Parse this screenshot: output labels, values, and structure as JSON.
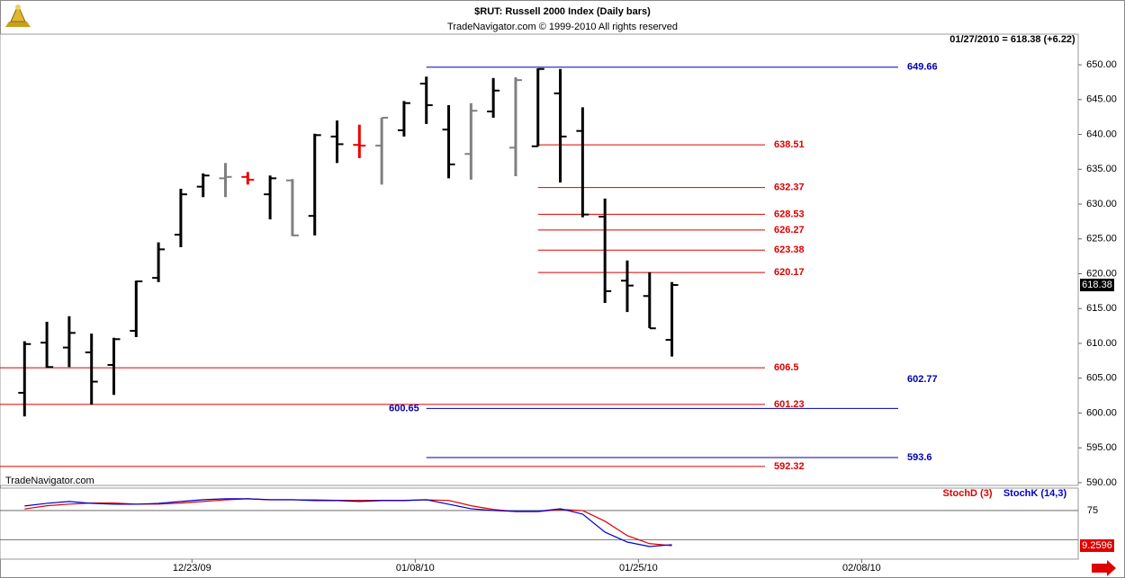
{
  "header": {
    "title": "$RUT:  Russell 2000 Index  (Daily bars)",
    "subtitle": "TradeNavigator.com © 1999-2010 All rights reserved"
  },
  "chart_data": [
    {
      "type": "ohlc",
      "status": "01/27/2010 = 618.38 (+6.22)",
      "watermark": "TradeNavigator.com",
      "x": [
        0,
        1,
        2,
        3,
        4,
        5,
        6,
        7,
        8,
        9,
        10,
        11,
        12,
        13,
        14,
        15,
        16,
        17,
        18,
        19,
        20,
        21,
        22,
        23,
        24,
        25,
        26,
        27,
        28,
        29
      ],
      "open": [
        602.9,
        610.1,
        609.4,
        608.7,
        606.9,
        611.8,
        619.4,
        625.6,
        632.5,
        633.7,
        633.9,
        631.4,
        633.4,
        628.3,
        639.7,
        638.5,
        638.4,
        640.6,
        647.3,
        640.7,
        637.2,
        643.3,
        638.1,
        638.3,
        645.9,
        640.5,
        628.2,
        619.0,
        616.8,
        610.5
      ],
      "high": [
        610.3,
        613.1,
        613.9,
        611.4,
        610.8,
        619.0,
        624.5,
        632.2,
        634.4,
        635.9,
        634.6,
        634.1,
        633.6,
        640.1,
        642.0,
        641.4,
        642.4,
        644.8,
        648.3,
        644.2,
        644.5,
        648.1,
        648.2,
        649.5,
        649.4,
        643.9,
        630.8,
        621.9,
        620.2,
        618.8
      ],
      "low": [
        599.5,
        606.5,
        606.6,
        601.2,
        602.6,
        610.9,
        618.8,
        623.8,
        631.0,
        631.0,
        632.8,
        627.8,
        625.4,
        625.5,
        635.9,
        636.6,
        632.8,
        639.7,
        641.5,
        633.7,
        633.5,
        642.4,
        634.0,
        638.3,
        633.1,
        628.1,
        615.8,
        614.5,
        612.2,
        608.1
      ],
      "close": [
        609.9,
        606.6,
        611.5,
        604.5,
        610.6,
        618.9,
        623.5,
        631.4,
        634.1,
        633.9,
        633.5,
        633.7,
        625.5,
        639.9,
        638.6,
        638.4,
        642.4,
        644.5,
        644.2,
        635.7,
        643.4,
        646.3,
        647.8,
        649.4,
        639.7,
        628.5,
        617.5,
        618.3,
        612.16,
        618.38
      ],
      "colors": [
        "#000000",
        "#000000",
        "#000000",
        "#000000",
        "#000000",
        "#000000",
        "#000000",
        "#000000",
        "#000000",
        "#808080",
        "#ee0000",
        "#000000",
        "#808080",
        "#000000",
        "#000000",
        "#ee0000",
        "#808080",
        "#000000",
        "#000000",
        "#000000",
        "#808080",
        "#000000",
        "#808080",
        "#000000",
        "#000000",
        "#000000",
        "#000000",
        "#000000",
        "#000000",
        "#000000"
      ],
      "levels": [
        {
          "value": 649.66,
          "color": "#0000aa",
          "start": 18
        },
        {
          "value": 638.51,
          "color": "#dd0000",
          "start": 23
        },
        {
          "value": 632.37,
          "color": "#dd0000",
          "start": 23
        },
        {
          "value": 628.53,
          "color": "#dd0000",
          "start": 23
        },
        {
          "value": 626.27,
          "color": "#dd0000",
          "start": 23
        },
        {
          "value": 623.38,
          "color": "#dd0000",
          "start": 23
        },
        {
          "value": 620.17,
          "color": "#dd0000",
          "start": 23
        },
        {
          "value": 606.5,
          "color": "#dd0000",
          "start": -1.1
        },
        {
          "value": 602.77,
          "color": "#0000aa",
          "start": 47
        },
        {
          "value": 601.23,
          "color": "#dd0000",
          "start": -1.1
        },
        {
          "value": 600.65,
          "color": "#0000aa",
          "start": 18,
          "label_side": "left"
        },
        {
          "value": 593.6,
          "color": "#0000aa",
          "start": 18
        },
        {
          "value": 592.32,
          "color": "#dd0000",
          "start": -1.1
        }
      ],
      "xlim": [
        -1.1,
        47.2
      ],
      "ylim": [
        589.6,
        654.4
      ],
      "yticks": [
        {
          "value": 590,
          "label": "590.00"
        },
        {
          "value": 595,
          "label": "595.00"
        },
        {
          "value": 600,
          "label": "600.00"
        },
        {
          "value": 605,
          "label": "605.00"
        },
        {
          "value": 610,
          "label": "610.00"
        },
        {
          "value": 615,
          "label": "615.00"
        },
        {
          "value": 620,
          "label": "620.00"
        },
        {
          "value": 625,
          "label": "625.00"
        },
        {
          "value": 630,
          "label": "630.00"
        },
        {
          "value": 635,
          "label": "635.00"
        },
        {
          "value": 640,
          "label": "640.00"
        },
        {
          "value": 645,
          "label": "645.00"
        },
        {
          "value": 650,
          "label": "650.00"
        }
      ]
    },
    {
      "type": "line",
      "x": [
        0,
        1,
        2,
        3,
        4,
        5,
        6,
        7,
        8,
        9,
        10,
        11,
        12,
        13,
        14,
        15,
        16,
        17,
        18,
        19,
        20,
        21,
        22,
        23,
        24,
        25,
        26,
        27,
        28,
        29
      ],
      "series": [
        {
          "name": "StochD (3)",
          "color": "#dd0000",
          "values": [
            78,
            84,
            87,
            89,
            89,
            87,
            87,
            89,
            92,
            95,
            97,
            95,
            95,
            95,
            94,
            94,
            94,
            94,
            95,
            94,
            84,
            77,
            73,
            73,
            77,
            75,
            55,
            28,
            13,
            9.2596
          ]
        },
        {
          "name": "StochK (14,3)",
          "color": "#0000cc",
          "values": [
            83.5,
            88.5,
            91.9,
            88.5,
            86.8,
            86.8,
            88.5,
            91.9,
            95.3,
            97,
            97,
            95.3,
            95.3,
            93.6,
            93.6,
            91.9,
            93.6,
            93.6,
            95.3,
            86.8,
            78.4,
            75,
            73.4,
            73.4,
            78.4,
            68.3,
            34.6,
            16,
            7.6,
            11
          ]
        }
      ],
      "ref_lines": [
        20
      ],
      "xlim": [
        -1.1,
        47.2
      ],
      "ylim": [
        -16,
        117
      ],
      "yticks": [
        75
      ],
      "xticks": [
        {
          "value": 7.5,
          "label": "12/23/09"
        },
        {
          "value": 17.5,
          "label": "01/08/10"
        },
        {
          "value": 27.5,
          "label": "01/25/10"
        },
        {
          "value": 37.5,
          "label": "02/08/10"
        }
      ]
    }
  ]
}
